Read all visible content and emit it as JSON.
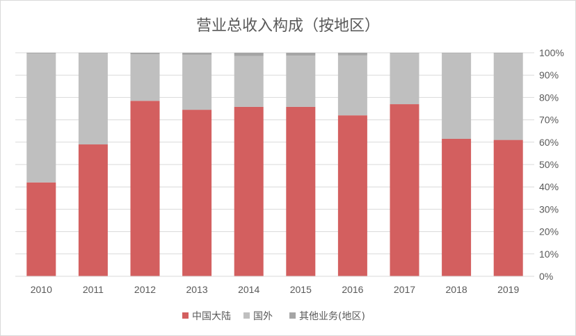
{
  "chart_data": {
    "type": "bar",
    "stacked": true,
    "title": "营业总收入构成（按地区）",
    "categories": [
      "2010",
      "2011",
      "2012",
      "2013",
      "2014",
      "2015",
      "2016",
      "2017",
      "2018",
      "2019"
    ],
    "series": [
      {
        "name": "中国大陆",
        "color": "#d35f5f",
        "values": [
          42,
          59,
          78.5,
          74.5,
          75.8,
          75.8,
          72,
          77,
          61.5,
          61
        ]
      },
      {
        "name": "国外",
        "color": "#bfbfbf",
        "values": [
          57.7,
          40.8,
          20.8,
          24.6,
          22.8,
          22.9,
          26.8,
          22.8,
          38.3,
          38.8
        ]
      },
      {
        "name": "其他业务(地区)",
        "color": "#a5a5a5",
        "values": [
          0.3,
          0.2,
          0.7,
          0.9,
          1.4,
          1.3,
          1.2,
          0.2,
          0.2,
          0.2
        ]
      }
    ],
    "y_ticks": [
      "0%",
      "10%",
      "20%",
      "30%",
      "40%",
      "50%",
      "60%",
      "70%",
      "80%",
      "90%",
      "100%"
    ],
    "ylim": [
      0,
      100
    ],
    "y_axis_side": "right",
    "grid": true,
    "legend_position": "bottom"
  }
}
